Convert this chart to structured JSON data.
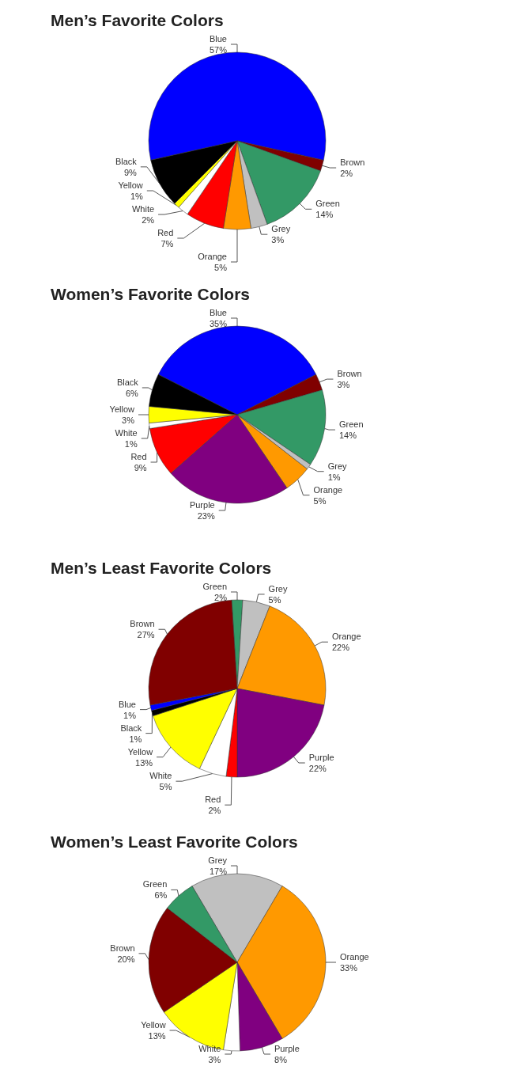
{
  "chart_data": [
    {
      "type": "pie",
      "title": "Men’s Favorite Colors",
      "categories": [
        "Blue",
        "Brown",
        "Green",
        "Grey",
        "Orange",
        "Red",
        "White",
        "Yellow",
        "Black"
      ],
      "values": [
        57,
        2,
        14,
        3,
        5,
        7,
        2,
        1,
        9
      ],
      "value_labels": [
        "57%",
        "2%",
        "14%",
        "3%",
        "5%",
        "7%",
        "2%",
        "1%",
        "9%"
      ],
      "colors": [
        "#0000ff",
        "#800000",
        "#339966",
        "#c0c0c0",
        "#ff9900",
        "#ff0000",
        "#ffffff",
        "#ffff00",
        "#000000"
      ]
    },
    {
      "type": "pie",
      "title": "Women’s Favorite Colors",
      "categories": [
        "Blue",
        "Brown",
        "Green",
        "Grey",
        "Orange",
        "Purple",
        "Red",
        "White",
        "Yellow",
        "Black"
      ],
      "values": [
        35,
        3,
        14,
        1,
        5,
        23,
        9,
        1,
        3,
        6
      ],
      "value_labels": [
        "35%",
        "3%",
        "14%",
        "1%",
        "5%",
        "23%",
        "9%",
        "1%",
        "3%",
        "6%"
      ],
      "colors": [
        "#0000ff",
        "#800000",
        "#339966",
        "#c0c0c0",
        "#ff9900",
        "#800080",
        "#ff0000",
        "#ffffff",
        "#ffff00",
        "#000000"
      ]
    },
    {
      "type": "pie",
      "title": "Men’s Least Favorite Colors",
      "categories": [
        "Green",
        "Grey",
        "Orange",
        "Purple",
        "Red",
        "White",
        "Yellow",
        "Black",
        "Blue",
        "Brown"
      ],
      "values": [
        2,
        5,
        22,
        22,
        2,
        5,
        13,
        1,
        1,
        27
      ],
      "value_labels": [
        "2%",
        "5%",
        "22%",
        "22%",
        "2%",
        "5%",
        "13%",
        "1%",
        "1%",
        "27%"
      ],
      "colors": [
        "#339966",
        "#c0c0c0",
        "#ff9900",
        "#800080",
        "#ff0000",
        "#ffffff",
        "#ffff00",
        "#000000",
        "#0000ff",
        "#800000"
      ]
    },
    {
      "type": "pie",
      "title": "Women’s Least Favorite Colors",
      "categories": [
        "Grey",
        "Orange",
        "Purple",
        "White",
        "Yellow",
        "Brown",
        "Green"
      ],
      "values": [
        17,
        33,
        8,
        3,
        13,
        20,
        6
      ],
      "value_labels": [
        "17%",
        "33%",
        "8%",
        "3%",
        "13%",
        "20%",
        "6%"
      ],
      "colors": [
        "#c0c0c0",
        "#ff9900",
        "#800080",
        "#ffffff",
        "#ffff00",
        "#800000",
        "#339966"
      ]
    }
  ]
}
